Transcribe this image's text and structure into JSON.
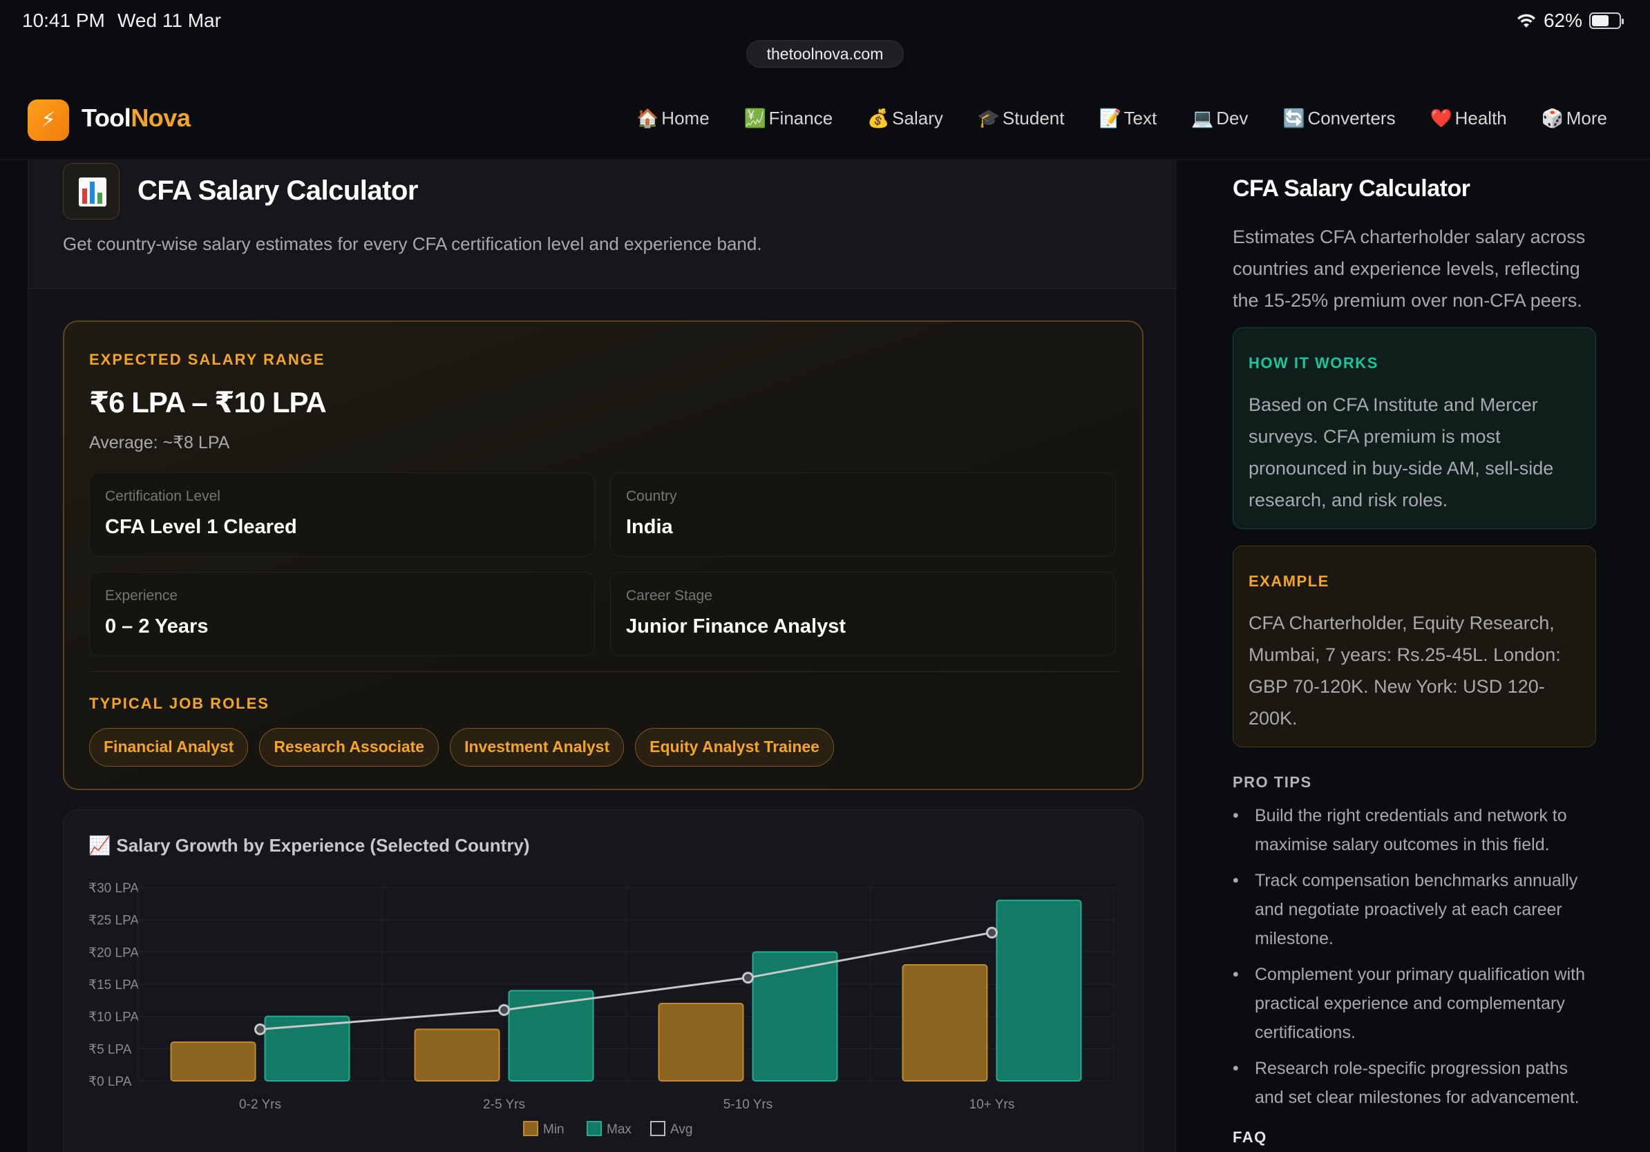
{
  "status": {
    "time": "10:41 PM",
    "date": "Wed 11 Mar",
    "battery": "62%",
    "battery_level": 0.62
  },
  "browser": {
    "url": "thetoolnova.com"
  },
  "brand": {
    "name_part1": "Tool",
    "name_part2": "Nova",
    "logo_glyph": "⚡"
  },
  "nav": {
    "items": [
      {
        "icon": "🏠",
        "icon_name": "house-icon",
        "label": "Home"
      },
      {
        "icon": "💹",
        "icon_name": "finance-chart-icon",
        "label": "Finance"
      },
      {
        "icon": "💰",
        "icon_name": "money-bag-icon",
        "label": "Salary"
      },
      {
        "icon": "🎓",
        "icon_name": "graduation-cap-icon",
        "label": "Student"
      },
      {
        "icon": "📝",
        "icon_name": "memo-icon",
        "label": "Text"
      },
      {
        "icon": "💻",
        "icon_name": "laptop-icon",
        "label": "Dev"
      },
      {
        "icon": "🔄",
        "icon_name": "convert-arrows-icon",
        "label": "Converters"
      },
      {
        "icon": "❤️",
        "icon_name": "heart-icon",
        "label": "Health"
      },
      {
        "icon": "🎲",
        "icon_name": "dice-icon",
        "label": "More"
      }
    ]
  },
  "page": {
    "title": "CFA Salary Calculator",
    "description": "Get country-wise salary estimates for every CFA certification level and experience band."
  },
  "result": {
    "label": "EXPECTED SALARY RANGE",
    "range": "₹6 LPA – ₹10 LPA",
    "average": "Average: ~₹8 LPA",
    "fields": {
      "certification": {
        "label": "Certification Level",
        "value": "CFA Level 1 Cleared"
      },
      "country": {
        "label": "Country",
        "value": "India"
      },
      "experience": {
        "label": "Experience",
        "value": "0 – 2 Years"
      },
      "career_stage": {
        "label": "Career Stage",
        "value": "Junior Finance Analyst"
      }
    },
    "roles_label": "TYPICAL JOB ROLES",
    "roles": [
      "Financial Analyst",
      "Research Associate",
      "Investment Analyst",
      "Equity Analyst Trainee"
    ]
  },
  "chart_data": {
    "type": "bar",
    "title_icon": "📈",
    "title": "Salary Growth by Experience (Selected Country)",
    "categories": [
      "0-2 Yrs",
      "2-5 Yrs",
      "5-10 Yrs",
      "10+ Yrs"
    ],
    "series": [
      {
        "name": "Min",
        "type": "bar",
        "color": "#8a6420",
        "values": [
          6,
          8,
          12,
          18
        ]
      },
      {
        "name": "Max",
        "type": "bar",
        "color": "#137a66",
        "values": [
          10,
          14,
          20,
          28
        ]
      },
      {
        "name": "Avg",
        "type": "line",
        "color": "#c9c9c9",
        "values": [
          8,
          11,
          16,
          23
        ]
      }
    ],
    "yticks": [
      "₹0 LPA",
      "₹5 LPA",
      "₹10 LPA",
      "₹15 LPA",
      "₹20 LPA",
      "₹25 LPA",
      "₹30 LPA"
    ],
    "ylim": [
      0,
      30
    ],
    "grid": true,
    "legend_position": "bottom-center"
  },
  "sidebar": {
    "title": "CFA Salary Calculator",
    "description": "Estimates CFA charterholder salary across countries and experience levels, reflecting the 15-25% premium over non-CFA peers.",
    "how": {
      "label": "HOW IT WORKS",
      "text": "Based on CFA Institute and Mercer surveys. CFA premium is most pronounced in buy-side AM, sell-side research, and risk roles."
    },
    "example": {
      "label": "EXAMPLE",
      "text": "CFA Charterholder, Equity Research, Mumbai, 7 years: Rs.25-45L. London: GBP 70-120K. New York: USD 120-200K."
    },
    "tips_label": "PRO TIPS",
    "tips": [
      "Build the right credentials and network to maximise salary outcomes in this field.",
      "Track compensation benchmarks annually and negotiate proactively at each career milestone.",
      "Complement your primary qualification with practical experience and complementary certifications.",
      "Research role-specific progression paths and set clear milestones for advancement."
    ],
    "faq_label": "FAQ"
  },
  "colors": {
    "accent_orange": "#f5a524",
    "accent_teal": "#16c79a",
    "background": "#0b0c10"
  }
}
